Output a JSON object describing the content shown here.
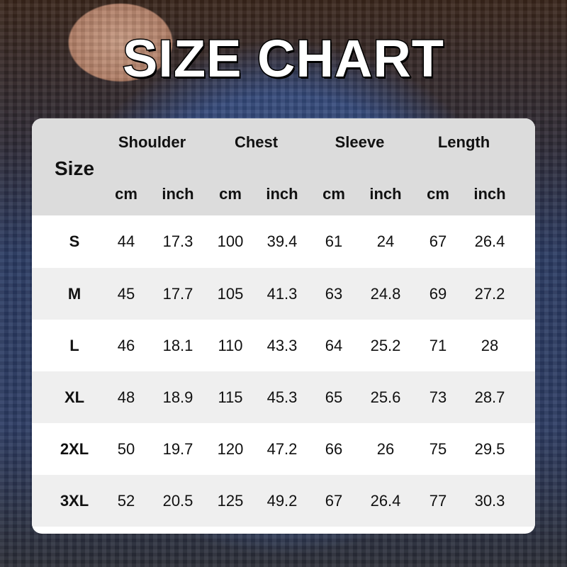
{
  "title": "SIZE CHART",
  "table": {
    "size_header": "Size",
    "groups": [
      "Shoulder",
      "Chest",
      "Sleeve",
      "Length"
    ],
    "units": [
      "cm",
      "inch",
      "cm",
      "inch",
      "cm",
      "inch",
      "cm",
      "inch"
    ],
    "rows": [
      [
        "S",
        "44",
        "17.3",
        "100",
        "39.4",
        "61",
        "24",
        "67",
        "26.4"
      ],
      [
        "M",
        "45",
        "17.7",
        "105",
        "41.3",
        "63",
        "24.8",
        "69",
        "27.2"
      ],
      [
        "L",
        "46",
        "18.1",
        "110",
        "43.3",
        "64",
        "25.2",
        "71",
        "28"
      ],
      [
        "XL",
        "48",
        "18.9",
        "115",
        "45.3",
        "65",
        "25.6",
        "73",
        "28.7"
      ],
      [
        "2XL",
        "50",
        "19.7",
        "120",
        "47.2",
        "66",
        "26",
        "75",
        "29.5"
      ],
      [
        "3XL",
        "52",
        "20.5",
        "125",
        "49.2",
        "67",
        "26.4",
        "77",
        "30.3"
      ]
    ],
    "colors": {
      "header_bg": "#dcdcdc",
      "row_alt": "#efefef",
      "row": "#ffffff"
    }
  }
}
